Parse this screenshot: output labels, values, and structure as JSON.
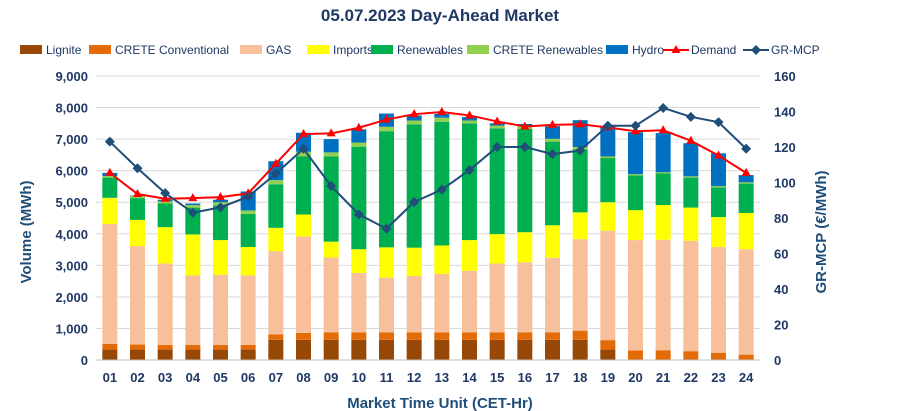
{
  "chart_data": {
    "type": "bar",
    "stacked": true,
    "title": "05.07.2023  Day-Ahead Market",
    "xlabel": "Market Time Unit (CET-Hr)",
    "ylabel": "Volume (MWh)",
    "y2label": "GR-MCP (€/MWh)",
    "ylim": [
      0,
      9000
    ],
    "y2lim": [
      0,
      160
    ],
    "yticks": [
      "0",
      "1,000",
      "2,000",
      "3,000",
      "4,000",
      "5,000",
      "6,000",
      "7,000",
      "8,000",
      "9,000"
    ],
    "y2ticks": [
      "0",
      "20",
      "40",
      "60",
      "80",
      "100",
      "120",
      "140",
      "160"
    ],
    "categories": [
      "01",
      "02",
      "03",
      "04",
      "05",
      "06",
      "07",
      "08",
      "09",
      "10",
      "11",
      "12",
      "13",
      "14",
      "15",
      "16",
      "17",
      "18",
      "19",
      "20",
      "21",
      "22",
      "23",
      "24"
    ],
    "series": [
      {
        "name": "Lignite",
        "kind": "bar",
        "color": "#974706",
        "values": [
          330,
          330,
          330,
          330,
          330,
          330,
          640,
          640,
          640,
          640,
          640,
          640,
          640,
          640,
          640,
          640,
          640,
          640,
          330,
          0,
          0,
          0,
          0,
          0
        ]
      },
      {
        "name": "CRETE Conventional",
        "kind": "bar",
        "color": "#e36c09",
        "values": [
          180,
          160,
          150,
          150,
          150,
          150,
          170,
          220,
          240,
          240,
          240,
          240,
          240,
          240,
          240,
          240,
          240,
          290,
          300,
          300,
          310,
          280,
          230,
          170
        ]
      },
      {
        "name": "GAS",
        "kind": "bar",
        "color": "#f8c09a",
        "values": [
          3800,
          3120,
          2580,
          2200,
          2220,
          2200,
          2640,
          3050,
          2370,
          1880,
          1730,
          1780,
          1850,
          1950,
          2180,
          2220,
          2360,
          2900,
          3470,
          3500,
          3500,
          3500,
          3350,
          3340
        ]
      },
      {
        "name": "Imports",
        "kind": "bar",
        "color": "#ffff00",
        "values": [
          830,
          830,
          1150,
          1300,
          1100,
          900,
          740,
          700,
          500,
          750,
          960,
          900,
          900,
          970,
          930,
          950,
          1030,
          850,
          900,
          950,
          1100,
          1050,
          950,
          1150
        ]
      },
      {
        "name": "Renewables",
        "kind": "bar",
        "color": "#00b050",
        "values": [
          640,
          690,
          750,
          850,
          1100,
          1050,
          1380,
          1850,
          2700,
          3250,
          3680,
          3910,
          3920,
          3700,
          3350,
          3270,
          2650,
          2000,
          1400,
          1100,
          1000,
          950,
          940,
          930
        ]
      },
      {
        "name": "CRETE Renewables",
        "kind": "bar",
        "color": "#92d050",
        "values": [
          50,
          60,
          70,
          80,
          100,
          110,
          130,
          140,
          130,
          130,
          140,
          120,
          130,
          90,
          90,
          90,
          90,
          70,
          50,
          40,
          40,
          40,
          40,
          40
        ]
      },
      {
        "name": "Hydro",
        "kind": "bar",
        "color": "#0070c0",
        "values": [
          100,
          20,
          50,
          50,
          80,
          600,
          600,
          600,
          420,
          420,
          420,
          160,
          120,
          110,
          70,
          70,
          400,
          850,
          970,
          1330,
          1240,
          1050,
          1040,
          230
        ]
      },
      {
        "name": "Demand",
        "kind": "line",
        "color": "#ff0000",
        "values": [
          5930,
          5260,
          5110,
          5130,
          5160,
          5280,
          6220,
          7160,
          7180,
          7360,
          7620,
          7790,
          7860,
          7750,
          7560,
          7400,
          7450,
          7470,
          7370,
          7250,
          7280,
          6950,
          6480,
          5930
        ]
      },
      {
        "name": "GR-MCP",
        "kind": "line2",
        "color": "#1f4e79",
        "values": [
          123,
          108,
          94,
          83,
          86,
          92,
          105,
          119,
          98,
          82,
          74,
          89,
          96,
          107,
          120,
          120,
          116,
          118,
          132,
          132,
          142,
          137,
          134,
          119
        ]
      }
    ]
  }
}
